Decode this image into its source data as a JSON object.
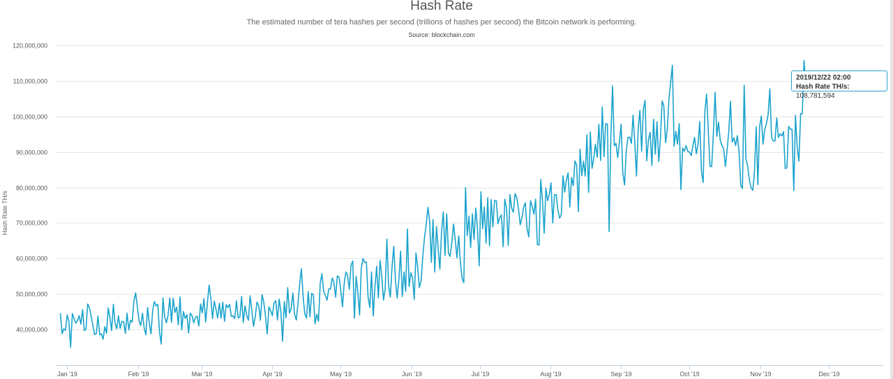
{
  "header": {
    "title": "Hash Rate",
    "subtitle": "The estimated number of tera hashes per second (trillions of hashes per second) the Bitcoin network is performing.",
    "source": "Source: blockchain.com"
  },
  "tooltip": {
    "date": "2019/12/22 02:00",
    "series_label": "Hash Rate TH/s",
    "value_text": "108,781,594"
  },
  "chart_data": {
    "type": "line",
    "title": "Hash Rate",
    "ylabel": "Hash Rate TH/s",
    "ylim": [
      30000000,
      121000000
    ],
    "yticks": [
      {
        "value": 40000000,
        "label": "40,000,000"
      },
      {
        "value": 50000000,
        "label": "50,000,000"
      },
      {
        "value": 60000000,
        "label": "60,000,000"
      },
      {
        "value": 70000000,
        "label": "70,000,000"
      },
      {
        "value": 80000000,
        "label": "80,000,000"
      },
      {
        "value": 90000000,
        "label": "90,000,000"
      },
      {
        "value": 100000000,
        "label": "100,000,000"
      },
      {
        "value": 110000000,
        "label": "110,000,000"
      },
      {
        "value": 120000000,
        "label": "120,000,000"
      }
    ],
    "xlim": [
      "2018-12-27",
      "2019-12-25"
    ],
    "xticks": [
      {
        "date": "2019-01-01",
        "label": "Jan '19"
      },
      {
        "date": "2019-02-01",
        "label": "Feb '19"
      },
      {
        "date": "2019-03-01",
        "label": "Mar '19"
      },
      {
        "date": "2019-04-01",
        "label": "Apr '19"
      },
      {
        "date": "2019-05-01",
        "label": "May '19"
      },
      {
        "date": "2019-06-01",
        "label": "Jun '19"
      },
      {
        "date": "2019-07-01",
        "label": "Jul '19"
      },
      {
        "date": "2019-08-01",
        "label": "Aug '19"
      },
      {
        "date": "2019-09-01",
        "label": "Sep '19"
      },
      {
        "date": "2019-10-01",
        "label": "Oct '19"
      },
      {
        "date": "2019-11-01",
        "label": "Nov '19"
      },
      {
        "date": "2019-12-01",
        "label": "Dec '19"
      }
    ],
    "grid": true,
    "legend": "none",
    "color": "#1aa3cc",
    "series": [
      {
        "start_date": "2018-12-29",
        "values": [
          44.5,
          38.8,
          40.2,
          39.8,
          44.1,
          42.3,
          35.0,
          44.5,
          43.1,
          41.8,
          42.5,
          43.9,
          41.5,
          45.6,
          39.7,
          40.1,
          47.2,
          46.1,
          43.8,
          41.2,
          38.6,
          38.8,
          43.8,
          38.5,
          38.8,
          37.3,
          40.8,
          38.9,
          46.1,
          43.3,
          39.7,
          47.1,
          41.8,
          40.2,
          43.9,
          40.3,
          42.3,
          42.2,
          38.9,
          44.6,
          39.9,
          42.6,
          42.1,
          48.0,
          50.3,
          46.5,
          42.5,
          41.1,
          44.6,
          40.5,
          38.5,
          46.2,
          41.8,
          38.8,
          45.4,
          47.9,
          46.6,
          47.1,
          39.2,
          35.9,
          48.9,
          43.6,
          41.9,
          44.0,
          48.9,
          42.0,
          48.8,
          44.8,
          46.3,
          41.3,
          49.2,
          39.9,
          45.1,
          43.1,
          44.2,
          39.0,
          44.6,
          43.9,
          41.9,
          43.4,
          43.8,
          41.0,
          47.2,
          44.7,
          48.7,
          42.1,
          47.5,
          52.5,
          48.8,
          43.1,
          48.0,
          45.8,
          43.2,
          47.4,
          43.2,
          47.7,
          42.3,
          47.0,
          46.2,
          47.1,
          43.7,
          43.9,
          43.1,
          48.1,
          43.3,
          43.5,
          49.3,
          42.0,
          46.7,
          44.0,
          42.6,
          49.5,
          45.3,
          40.9,
          43.7,
          47.7,
          46.8,
          42.6,
          49.8,
          47.7,
          43.6,
          38.7,
          46.4,
          45.3,
          43.9,
          47.5,
          48.1,
          42.7,
          48.6,
          44.9,
          36.7,
          47.9,
          43.3,
          51.8,
          44.6,
          45.8,
          50.3,
          44.3,
          42.7,
          47.3,
          52.9,
          57.1,
          49.2,
          44.4,
          43.2,
          50.7,
          43.6,
          50.2,
          49.8,
          41.6,
          44.3,
          42.3,
          53.0,
          55.7,
          50.8,
          49.6,
          48.3,
          51.4,
          51.4,
          54.5,
          53.3,
          49.1,
          55.1,
          54.7,
          51.2,
          46.4,
          52.9,
          56.2,
          55.3,
          51.3,
          58.0,
          59.3,
          43.2,
          55.0,
          50.5,
          44.1,
          57.1,
          60.0,
          58.9,
          59.0,
          49.1,
          46.2,
          56.2,
          43.8,
          51.9,
          57.8,
          48.9,
          59.5,
          55.0,
          48.3,
          51.4,
          65.5,
          52.3,
          49.1,
          57.6,
          63.4,
          53.9,
          48.9,
          54.0,
          62.1,
          49.3,
          56.2,
          50.7,
          68.3,
          52.1,
          56.0,
          54.5,
          48.5,
          61.6,
          57.5,
          51.8,
          53.8,
          60.5,
          65.9,
          69.6,
          74.4,
          70.6,
          58.9,
          71.0,
          56.2,
          69.0,
          62.6,
          57.0,
          68.0,
          73.1,
          60.9,
          72.6,
          61.5,
          60.6,
          64.7,
          69.7,
          65.1,
          60.2,
          66.4,
          58.9,
          54.4,
          53.2,
          80.0,
          66.4,
          71.9,
          63.1,
          72.6,
          65.4,
          74.2,
          68.4,
          57.9,
          78.8,
          68.4,
          74.5,
          64.3,
          77.1,
          63.6,
          76.6,
          68.9,
          76.3,
          76.3,
          69.8,
          71.6,
          72.3,
          63.3,
          76.7,
          74.1,
          63.7,
          78.0,
          74.2,
          73.0,
          78.3,
          77.1,
          73.9,
          69.5,
          71.5,
          74.5,
          75.7,
          68.3,
          66.1,
          76.3,
          74.7,
          72.5,
          76.7,
          63.9,
          63.8,
          82.3,
          76.2,
          67.1,
          79.8,
          76.3,
          78.1,
          81.3,
          70.0,
          77.9,
          78.0,
          73.8,
          71.4,
          72.3,
          83.3,
          78.7,
          82.2,
          84.1,
          74.5,
          82.8,
          80.5,
          87.5,
          86.3,
          73.2,
          90.8,
          83.3,
          87.4,
          83.2,
          94.8,
          78.6,
          95.6,
          85.4,
          88.2,
          92.2,
          88.5,
          97.8,
          87.6,
          102.7,
          88.7,
          98.0,
          97.8,
          67.6,
          94.4,
          108.6,
          91.8,
          92.4,
          88.4,
          92.6,
          97.8,
          84.2,
          80.7,
          90.2,
          94.1,
          94.2,
          92.4,
          100.4,
          92.6,
          83.2,
          96.7,
          101.7,
          90.2,
          102.0,
          104.5,
          87.5,
          93.5,
          95.5,
          86.2,
          99.2,
          89.4,
          98.5,
          87.3,
          93.6,
          104.4,
          103.0,
          92.6,
          96.2,
          105.0,
          109.7,
          114.4,
          91.6,
          95.8,
          92.2,
          98.0,
          79.4,
          91.1,
          90.2,
          91.8,
          90.2,
          89.9,
          89.0,
          91.8,
          94.1,
          89.5,
          92.1,
          98.6,
          84.6,
          81.4,
          101.3,
          106.3,
          96.2,
          85.9,
          85.9,
          95.5,
          106.8,
          94.4,
          98.4,
          93.3,
          91.9,
          90.9,
          85.9,
          90.5,
          95.8,
          104.3,
          92.8,
          94.0,
          91.8,
          94.6,
          90.1,
          80.6,
          79.7,
          108.8,
          88.2,
          86.0,
          82.2,
          79.9,
          79.2,
          84.3,
          97.1,
          80.8,
          97.1,
          100.1,
          92.2,
          96.2,
          98.0,
          100.5,
          107.8,
          94.1,
          93.1,
          93.1,
          99.6,
          94.1,
          95.1,
          94.5,
          95.7,
          85.3,
          85.6,
          97.2,
          96.4,
          96.4,
          79.1,
          100.3,
          91.2,
          87.4,
          100.8,
          100.8,
          115.8,
          108.8,
          110.2
        ]
      }
    ]
  }
}
